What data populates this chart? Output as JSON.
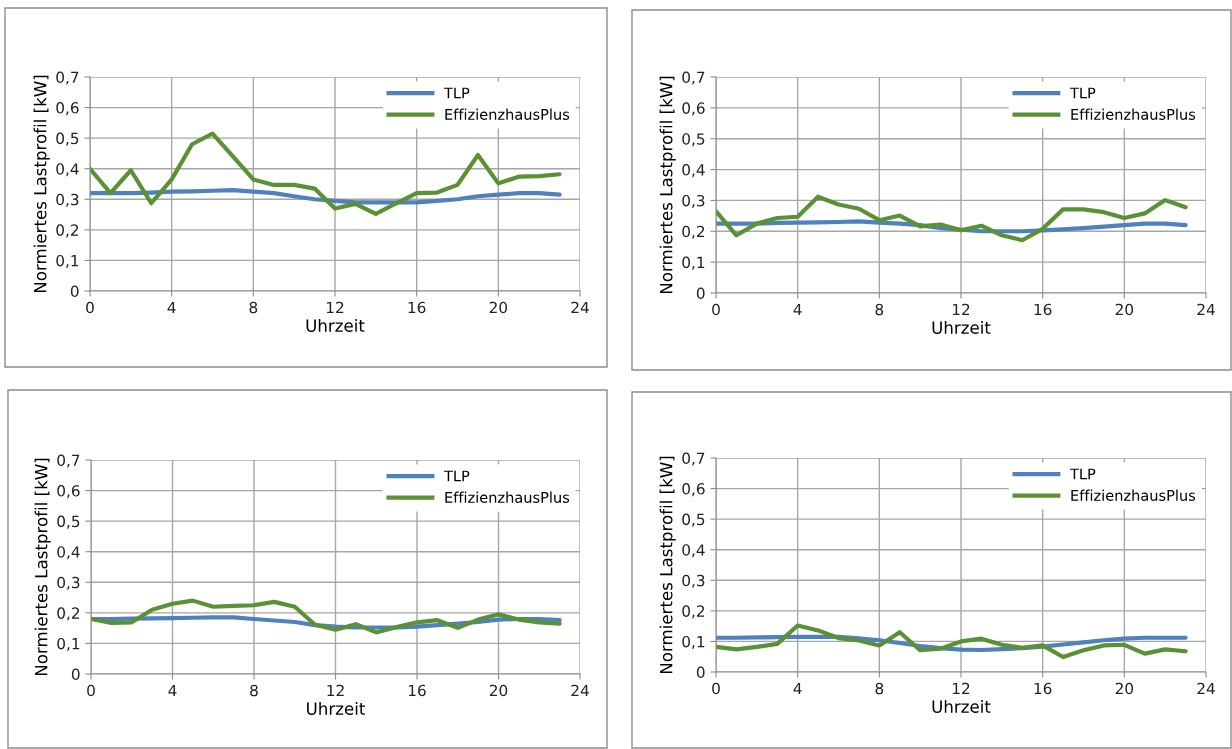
{
  "chart_data": [
    {
      "type": "line",
      "xlabel": "Uhrzeit",
      "ylabel": "Normiertes Lastprofil [kW]",
      "x": [
        0,
        1,
        2,
        3,
        4,
        5,
        6,
        7,
        8,
        9,
        10,
        11,
        12,
        13,
        14,
        15,
        16,
        17,
        18,
        19,
        20,
        21,
        22,
        23
      ],
      "xlim": [
        0,
        24
      ],
      "xticks": [
        0,
        4,
        8,
        12,
        16,
        20,
        24
      ],
      "ylim": [
        0,
        0.7
      ],
      "yticks": [
        0,
        {
          "value": 0.1,
          "label": "0,1"
        },
        {
          "value": 0.2,
          "label": "0,2"
        },
        {
          "value": 0.3,
          "label": "0,3"
        },
        {
          "value": 0.4,
          "label": "0,4"
        },
        {
          "value": 0.5,
          "label": "0,5"
        },
        {
          "value": 0.6,
          "label": "0,6"
        },
        {
          "value": 0.7,
          "label": "0,7"
        }
      ],
      "grid": true,
      "legend": "top right",
      "marker": "none",
      "line_style": "solid",
      "series": [
        {
          "name": "TLP",
          "color": "#4f81bd",
          "values": [
            0.32,
            0.32,
            0.32,
            0.322,
            0.325,
            0.326,
            0.328,
            0.33,
            0.325,
            0.32,
            0.31,
            0.3,
            0.295,
            0.29,
            0.29,
            0.29,
            0.29,
            0.295,
            0.3,
            0.31,
            0.315,
            0.32,
            0.32,
            0.315
          ]
        },
        {
          "name": "EffizienzhausPlus",
          "color": "#5b9135",
          "values": [
            0.4,
            0.32,
            0.395,
            0.287,
            0.365,
            0.48,
            0.515,
            0.44,
            0.365,
            0.347,
            0.347,
            0.335,
            0.27,
            0.285,
            0.252,
            0.287,
            0.32,
            0.322,
            0.347,
            0.445,
            0.352,
            0.374,
            0.376,
            0.382
          ]
        }
      ]
    },
    {
      "type": "line",
      "xlabel": "Uhrzeit",
      "ylabel": "Normiertes Lastprofil [kW]",
      "x": [
        0,
        1,
        2,
        3,
        4,
        5,
        6,
        7,
        8,
        9,
        10,
        11,
        12,
        13,
        14,
        15,
        16,
        17,
        18,
        19,
        20,
        21,
        22,
        23
      ],
      "xlim": [
        0,
        24
      ],
      "xticks": [
        0,
        4,
        8,
        12,
        16,
        20,
        24
      ],
      "ylim": [
        0,
        0.7
      ],
      "yticks": [
        0,
        {
          "value": 0.1,
          "label": "0,1"
        },
        {
          "value": 0.2,
          "label": "0,2"
        },
        {
          "value": 0.3,
          "label": "0,3"
        },
        {
          "value": 0.4,
          "label": "0,4"
        },
        {
          "value": 0.5,
          "label": "0,5"
        },
        {
          "value": 0.6,
          "label": "0,6"
        },
        {
          "value": 0.7,
          "label": "0,7"
        }
      ],
      "grid": true,
      "legend": "top right",
      "marker": "none",
      "line_style": "solid",
      "series": [
        {
          "name": "TLP",
          "color": "#4f81bd",
          "values": [
            0.225,
            0.225,
            0.225,
            0.227,
            0.228,
            0.229,
            0.23,
            0.232,
            0.228,
            0.225,
            0.22,
            0.21,
            0.205,
            0.2,
            0.2,
            0.2,
            0.203,
            0.206,
            0.21,
            0.215,
            0.22,
            0.225,
            0.225,
            0.22
          ]
        },
        {
          "name": "EffizienzhausPlus",
          "color": "#5b9135",
          "values": [
            0.265,
            0.187,
            0.225,
            0.243,
            0.247,
            0.312,
            0.287,
            0.273,
            0.236,
            0.251,
            0.216,
            0.222,
            0.203,
            0.218,
            0.187,
            0.171,
            0.208,
            0.271,
            0.271,
            0.262,
            0.243,
            0.258,
            0.301,
            0.278
          ]
        }
      ]
    },
    {
      "type": "line",
      "xlabel": "Uhrzeit",
      "ylabel": "Normiertes Lastprofil [kW]",
      "x": [
        0,
        1,
        2,
        3,
        4,
        5,
        6,
        7,
        8,
        9,
        10,
        11,
        12,
        13,
        14,
        15,
        16,
        17,
        18,
        19,
        20,
        21,
        22,
        23
      ],
      "xlim": [
        0,
        24
      ],
      "xticks": [
        0,
        4,
        8,
        12,
        16,
        20,
        24
      ],
      "ylim": [
        0,
        0.7
      ],
      "yticks": [
        0,
        {
          "value": 0.1,
          "label": "0,1"
        },
        {
          "value": 0.2,
          "label": "0,2"
        },
        {
          "value": 0.3,
          "label": "0,3"
        },
        {
          "value": 0.4,
          "label": "0,4"
        },
        {
          "value": 0.5,
          "label": "0,5"
        },
        {
          "value": 0.6,
          "label": "0,6"
        },
        {
          "value": 0.7,
          "label": "0,7"
        }
      ],
      "grid": true,
      "legend": "top right",
      "marker": "none",
      "line_style": "solid",
      "series": [
        {
          "name": "TLP",
          "color": "#4f81bd",
          "values": [
            0.18,
            0.18,
            0.181,
            0.182,
            0.183,
            0.184,
            0.185,
            0.185,
            0.18,
            0.175,
            0.17,
            0.16,
            0.155,
            0.152,
            0.152,
            0.152,
            0.155,
            0.16,
            0.165,
            0.17,
            0.178,
            0.18,
            0.18,
            0.176
          ]
        },
        {
          "name": "EffizienzhausPlus",
          "color": "#5b9135",
          "values": [
            0.18,
            0.167,
            0.169,
            0.21,
            0.23,
            0.24,
            0.22,
            0.223,
            0.225,
            0.236,
            0.22,
            0.161,
            0.145,
            0.163,
            0.136,
            0.154,
            0.169,
            0.176,
            0.151,
            0.178,
            0.195,
            0.178,
            0.169,
            0.165
          ]
        }
      ]
    },
    {
      "type": "line",
      "xlabel": "Uhrzeit",
      "ylabel": "Normiertes Lastprofil [kW]",
      "x": [
        0,
        1,
        2,
        3,
        4,
        5,
        6,
        7,
        8,
        9,
        10,
        11,
        12,
        13,
        14,
        15,
        16,
        17,
        18,
        19,
        20,
        21,
        22,
        23
      ],
      "xlim": [
        0,
        24
      ],
      "xticks": [
        0,
        4,
        8,
        12,
        16,
        20,
        24
      ],
      "ylim": [
        0,
        0.7
      ],
      "yticks": [
        0,
        {
          "value": 0.1,
          "label": "0,1"
        },
        {
          "value": 0.2,
          "label": "0,2"
        },
        {
          "value": 0.3,
          "label": "0,3"
        },
        {
          "value": 0.4,
          "label": "0,4"
        },
        {
          "value": 0.5,
          "label": "0,5"
        },
        {
          "value": 0.6,
          "label": "0,6"
        },
        {
          "value": 0.7,
          "label": "0,7"
        }
      ],
      "grid": true,
      "legend": "top right",
      "marker": "none",
      "line_style": "solid",
      "series": [
        {
          "name": "TLP",
          "color": "#4f81bd",
          "values": [
            0.112,
            0.112,
            0.113,
            0.114,
            0.115,
            0.115,
            0.115,
            0.11,
            0.104,
            0.095,
            0.085,
            0.078,
            0.073,
            0.072,
            0.075,
            0.078,
            0.083,
            0.09,
            0.097,
            0.104,
            0.109,
            0.112,
            0.112,
            0.112
          ]
        },
        {
          "name": "EffizienzhausPlus",
          "color": "#5b9135",
          "values": [
            0.082,
            0.074,
            0.082,
            0.092,
            0.152,
            0.136,
            0.111,
            0.103,
            0.087,
            0.13,
            0.071,
            0.076,
            0.1,
            0.109,
            0.089,
            0.079,
            0.087,
            0.049,
            0.071,
            0.087,
            0.089,
            0.06,
            0.074,
            0.068
          ]
        }
      ]
    }
  ]
}
